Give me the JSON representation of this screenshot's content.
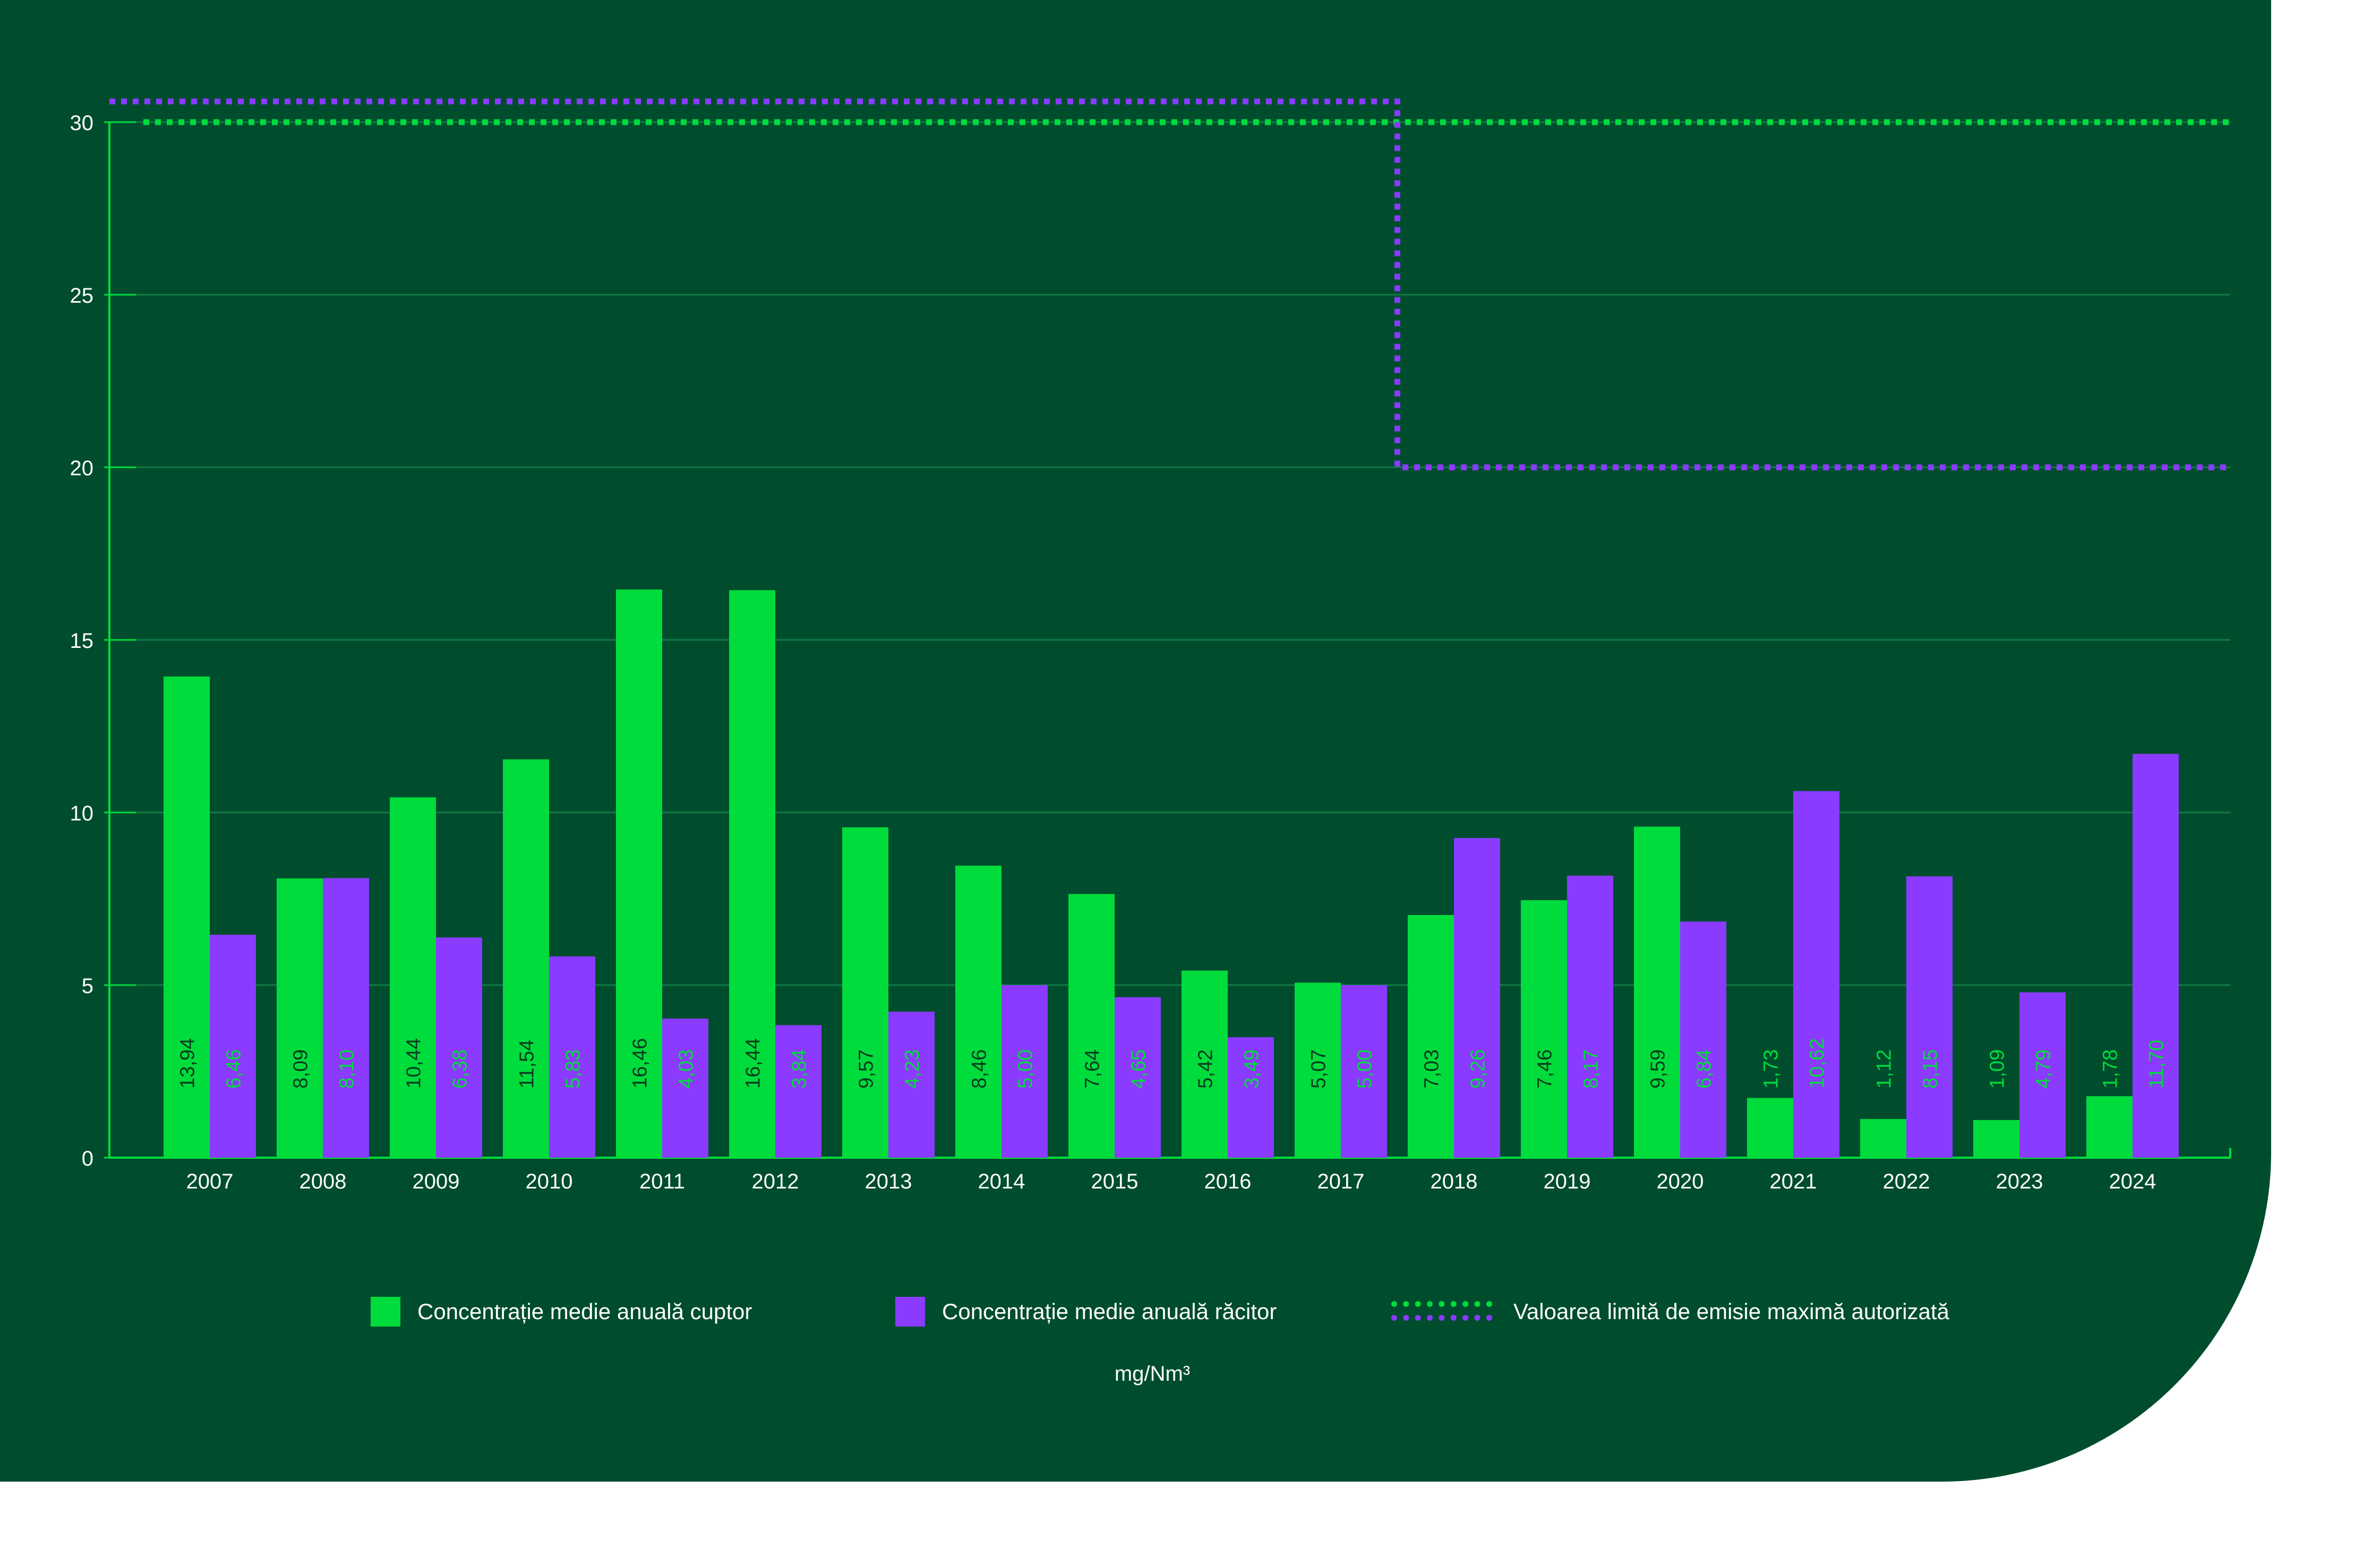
{
  "chart_data": {
    "type": "bar",
    "categories": [
      "2007",
      "2008",
      "2009",
      "2010",
      "2011",
      "2012",
      "2013",
      "2014",
      "2015",
      "2016",
      "2017",
      "2018",
      "2019",
      "2020",
      "2021",
      "2022",
      "2023",
      "2024"
    ],
    "series": [
      {
        "name": "Concentrație medie anuală cuptor",
        "color": "#00dc3c",
        "values": [
          13.94,
          8.09,
          10.44,
          11.54,
          16.46,
          16.44,
          9.57,
          8.46,
          7.64,
          5.42,
          5.07,
          7.03,
          7.46,
          9.59,
          1.73,
          1.12,
          1.09,
          1.78
        ],
        "labels": [
          "13,94",
          "8,09",
          "10,44",
          "11,54",
          "16,46",
          "16,44",
          "9,57",
          "8,46",
          "7,64",
          "5,42",
          "5,07",
          "7,03",
          "7,46",
          "9,59",
          "1,73",
          "1,12",
          "1,09",
          "1,78"
        ]
      },
      {
        "name": "Concentrație medie anuală răcitor",
        "color": "#8a3bff",
        "values": [
          6.46,
          8.1,
          6.38,
          5.83,
          4.03,
          3.84,
          4.23,
          5.0,
          4.65,
          3.49,
          5.0,
          9.26,
          8.17,
          6.84,
          10.62,
          8.15,
          4.79,
          11.7
        ],
        "labels": [
          "6,46",
          "8,10",
          "6,38",
          "5,83",
          "4,03",
          "3,84",
          "4,23",
          "5,00",
          "4,65",
          "3,49",
          "5,00",
          "9,26",
          "8,17",
          "6,84",
          "10,62",
          "8,15",
          "4,79",
          "11,70"
        ]
      }
    ],
    "limit_lines": [
      {
        "name": "cuptor",
        "color": "#00dc3c",
        "segments": [
          {
            "from": "2007",
            "to": "2024",
            "value": 30
          }
        ]
      },
      {
        "name": "răcitor",
        "color": "#8a3bff",
        "segments": [
          {
            "from": "2007",
            "to": "2017",
            "value": 30.6
          },
          {
            "from": "2018",
            "to": "2024",
            "value": 20
          }
        ]
      }
    ],
    "y_ticks": [
      0,
      5,
      10,
      15,
      20,
      25,
      30
    ],
    "ylim": [
      0,
      30
    ],
    "grid": true,
    "legend_position": "bottom-center",
    "ylabel": "mg/Nm³",
    "colors": {
      "background": "#004d2e",
      "grid": "#117a43",
      "axis": "#00dc3c",
      "text": "#ffffff"
    }
  },
  "legend": {
    "series_1": "Concentrație medie anuală cuptor",
    "series_2": "Concentrație medie anuală răcitor",
    "limit": "Valoarea limită de emisie maximă autorizată"
  },
  "unit_label": "mg/Nm³"
}
